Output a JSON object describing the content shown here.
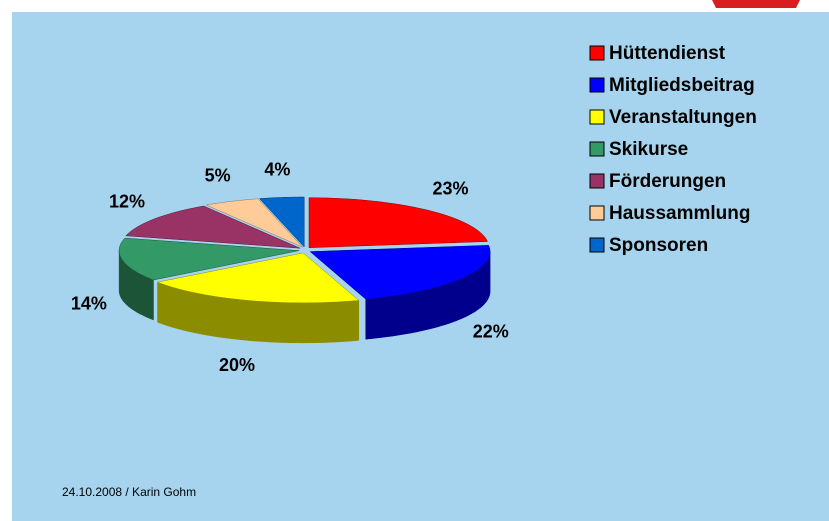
{
  "chart_data": {
    "type": "pie",
    "categories": [
      "Hüttendienst",
      "Mitgliedsbeitrag",
      "Veranstaltungen",
      "Skikurse",
      "Förderungen",
      "Haussammlung",
      "Sponsoren"
    ],
    "values": [
      23,
      22,
      20,
      14,
      12,
      5,
      4
    ],
    "value_labels": [
      "23%",
      "22%",
      "20%",
      "14%",
      "12%",
      "5%",
      "4%"
    ],
    "colors": [
      "#ff0000",
      "#0000ff",
      "#ffff00",
      "#339966",
      "#993366",
      "#ffcc99",
      "#0066cc"
    ],
    "legend": "right"
  },
  "footer": "24.10.2008 / Karin Gohm"
}
